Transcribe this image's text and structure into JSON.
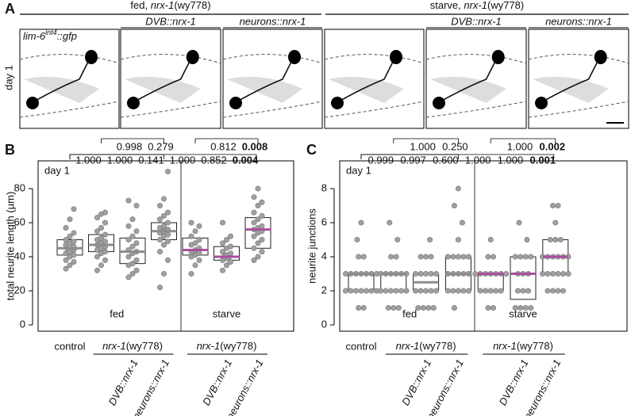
{
  "panel_labels": [
    "A",
    "B",
    "C"
  ],
  "figure_a": {
    "headers": [
      {
        "condition": "fed,",
        "gene": "nrx-1",
        "allele": "(wy778)"
      },
      {
        "condition": "starve,",
        "gene": "nrx-1",
        "allele": "(wy778)"
      }
    ],
    "columns": [
      null,
      "DVB::nrx-1",
      "neurons::nrx-1",
      null,
      "DVB::nrx-1",
      "neurons::nrx-1"
    ],
    "reporter": {
      "gene": "lim-6",
      "superscript": "int4",
      "suffix": "::gfp"
    },
    "row_label": "day 1"
  },
  "chart_data": [
    {
      "type": "box",
      "ylabel": "total neurite length (µm)",
      "ylim": [
        -3.7,
        96.3
      ],
      "yticks": [
        0,
        20,
        40,
        60,
        80
      ],
      "annotation": "day 1",
      "condition_labels": [
        "fed",
        "starve"
      ],
      "categories": [
        "control",
        null,
        "DVB::nrx-1",
        "neurons::nrx-1",
        null,
        "DVB::nrx-1",
        "neurons::nrx-1"
      ],
      "genotype": {
        "gene": "nrx-1",
        "allele": "(wy778)"
      },
      "point_color": "#a0a0a0",
      "median_colors": [
        "#8c8c8c",
        "#8c8c8c",
        "#8c8c8c",
        "#8c8c8c",
        "#a8509f",
        "#a8509f",
        "#a8509f"
      ],
      "boxes": [
        {
          "q1": 41,
          "median": 45,
          "q3": 50
        },
        {
          "q1": 43,
          "median": 47,
          "q3": 53
        },
        {
          "q1": 36,
          "median": 43,
          "q3": 51
        },
        {
          "q1": 50,
          "median": 55,
          "q3": 60
        },
        {
          "q1": 41,
          "median": 44,
          "q3": 51
        },
        {
          "q1": 38,
          "median": 40,
          "q3": 46
        },
        {
          "q1": 45,
          "median": 56,
          "q3": 63
        }
      ],
      "points": [
        [
          33,
          35,
          37,
          38,
          40,
          41,
          42,
          43,
          44,
          45,
          45,
          46,
          47,
          48,
          49,
          50,
          52,
          54,
          57,
          62,
          68
        ],
        [
          32,
          35,
          38,
          40,
          42,
          43,
          44,
          45,
          46,
          47,
          48,
          49,
          50,
          51,
          53,
          55,
          57,
          60,
          63,
          65,
          66
        ],
        [
          28,
          30,
          32,
          35,
          36,
          38,
          40,
          42,
          43,
          44,
          46,
          48,
          50,
          52,
          55,
          58,
          62,
          70,
          73
        ],
        [
          22,
          30,
          38,
          43,
          47,
          49,
          50,
          52,
          53,
          54,
          55,
          56,
          57,
          58,
          60,
          62,
          64,
          66,
          70,
          74,
          90
        ],
        [
          30,
          35,
          38,
          40,
          41,
          42,
          43,
          44,
          45,
          47,
          48,
          50,
          52,
          55,
          58,
          60
        ],
        [
          32,
          35,
          37,
          38,
          39,
          40,
          40,
          41,
          42,
          43,
          45,
          46,
          48,
          50,
          52,
          60
        ],
        [
          38,
          40,
          43,
          45,
          48,
          50,
          52,
          54,
          55,
          56,
          57,
          58,
          60,
          62,
          64,
          66,
          70,
          72,
          75,
          80
        ]
      ],
      "p_values": {
        "vs_mutant": [
          {
            "text": "0.998"
          },
          {
            "text": "0.279"
          },
          {
            "text": "0.812"
          },
          {
            "text": "0.008",
            "bold": true
          }
        ],
        "vs_control": [
          {
            "text": "1.000"
          },
          {
            "text": "1.000"
          },
          {
            "text": "0.141"
          },
          {
            "text": "1.000"
          },
          {
            "text": "0.852"
          },
          {
            "text": "0.004",
            "bold": true
          }
        ]
      }
    },
    {
      "type": "box",
      "ylabel": "neurite junctions",
      "ylim": [
        -0.37,
        9.63
      ],
      "yticks": [
        0,
        2,
        4,
        6,
        8
      ],
      "annotation": "day 1",
      "condition_labels": [
        "fed",
        "starve"
      ],
      "categories": [
        "control",
        null,
        "DVB::nrx-1",
        "neurons::nrx-1",
        null,
        "DVB::nrx-1",
        "neurons::nrx-1"
      ],
      "genotype": {
        "gene": "nrx-1",
        "allele": "(wy778)"
      },
      "point_color": "#a0a0a0",
      "median_colors": [
        "#8c8c8c",
        "#8c8c8c",
        "#8c8c8c",
        "#8c8c8c",
        "#a8509f",
        "#a8509f",
        "#a8509f"
      ],
      "boxes": [
        {
          "q1": 2,
          "median": 3,
          "q3": 3
        },
        {
          "q1": 2,
          "median": 3,
          "q3": 3
        },
        {
          "q1": 2,
          "median": 2.5,
          "q3": 3
        },
        {
          "q1": 2,
          "median": 3,
          "q3": 4
        },
        {
          "q1": 2,
          "median": 3,
          "q3": 3
        },
        {
          "q1": 1.5,
          "median": 3,
          "q3": 4
        },
        {
          "q1": 3,
          "median": 4,
          "q3": 5
        }
      ],
      "points": [
        [
          1,
          1,
          2,
          2,
          2,
          2,
          2,
          2,
          2,
          3,
          3,
          3,
          3,
          3,
          3,
          3,
          4,
          4,
          5,
          6
        ],
        [
          1,
          1,
          1,
          2,
          2,
          2,
          2,
          2,
          2,
          3,
          3,
          3,
          3,
          3,
          3,
          4,
          4,
          5,
          6
        ],
        [
          1,
          1,
          1,
          1,
          2,
          2,
          2,
          2,
          2,
          3,
          3,
          3,
          3,
          3,
          4,
          4,
          4,
          5
        ],
        [
          1,
          2,
          2,
          2,
          2,
          2,
          3,
          3,
          3,
          3,
          3,
          4,
          4,
          4,
          4,
          4,
          5,
          6,
          7,
          8
        ],
        [
          1,
          1,
          2,
          2,
          2,
          2,
          2,
          3,
          3,
          3,
          3,
          3,
          3,
          3,
          4,
          4,
          5
        ],
        [
          1,
          1,
          1,
          1,
          2,
          2,
          2,
          3,
          3,
          3,
          4,
          4,
          4,
          4,
          5,
          6
        ],
        [
          2,
          2,
          2,
          2,
          3,
          3,
          3,
          3,
          3,
          3,
          4,
          4,
          4,
          4,
          4,
          4,
          5,
          5,
          5,
          6,
          7,
          7
        ]
      ],
      "p_values": {
        "vs_mutant": [
          {
            "text": "1.000"
          },
          {
            "text": "0.250"
          },
          {
            "text": "1.000"
          },
          {
            "text": "0.002",
            "bold": true
          }
        ],
        "vs_control": [
          {
            "text": "0.999"
          },
          {
            "text": "0.997"
          },
          {
            "text": "0.600"
          },
          {
            "text": "1.000"
          },
          {
            "text": "1.000"
          },
          {
            "text": "0.001",
            "bold": true
          }
        ]
      }
    }
  ]
}
